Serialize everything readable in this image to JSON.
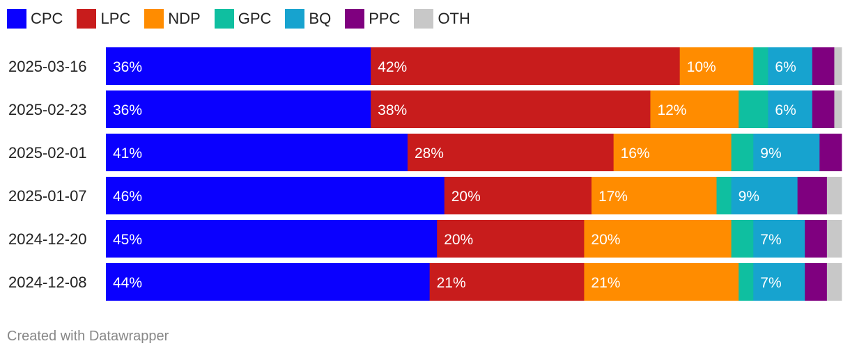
{
  "chart_data": {
    "type": "bar",
    "orientation": "horizontal",
    "stacked": true,
    "categories": [
      "2025-03-16",
      "2025-02-23",
      "2025-02-01",
      "2025-01-07",
      "2024-12-20",
      "2024-12-08"
    ],
    "series": [
      {
        "name": "CPC",
        "color": "#0a00ff",
        "values": [
          36,
          36,
          41,
          46,
          45,
          44
        ],
        "labels": [
          "36%",
          "36%",
          "41%",
          "46%",
          "45%",
          "44%"
        ]
      },
      {
        "name": "LPC",
        "color": "#c81c1c",
        "values": [
          42,
          38,
          28,
          20,
          20,
          21
        ],
        "labels": [
          "42%",
          "38%",
          "28%",
          "20%",
          "20%",
          "21%"
        ]
      },
      {
        "name": "NDP",
        "color": "#ff8c00",
        "values": [
          10,
          12,
          16,
          17,
          20,
          21
        ],
        "labels": [
          "10%",
          "12%",
          "16%",
          "17%",
          "20%",
          "21%"
        ]
      },
      {
        "name": "GPC",
        "color": "#0fbfa0",
        "values": [
          2,
          4,
          3,
          2,
          3,
          2
        ],
        "labels": [
          "",
          "",
          "",
          "",
          "",
          ""
        ]
      },
      {
        "name": "BQ",
        "color": "#17a3cf",
        "values": [
          6,
          6,
          9,
          9,
          7,
          7
        ],
        "labels": [
          "6%",
          "6%",
          "9%",
          "9%",
          "7%",
          "7%"
        ]
      },
      {
        "name": "PPC",
        "color": "#7f007f",
        "values": [
          3,
          3,
          3,
          4,
          3,
          3
        ],
        "labels": [
          "",
          "",
          "",
          "",
          "",
          ""
        ]
      },
      {
        "name": "OTH",
        "color": "#c8c8c8",
        "values": [
          1,
          1,
          0,
          2,
          2,
          2
        ],
        "labels": [
          "",
          "",
          "",
          "",
          "",
          ""
        ]
      }
    ],
    "xlim": [
      0,
      100
    ],
    "legend_position": "top-left",
    "grid": false
  },
  "footer": "Created with Datawrapper"
}
